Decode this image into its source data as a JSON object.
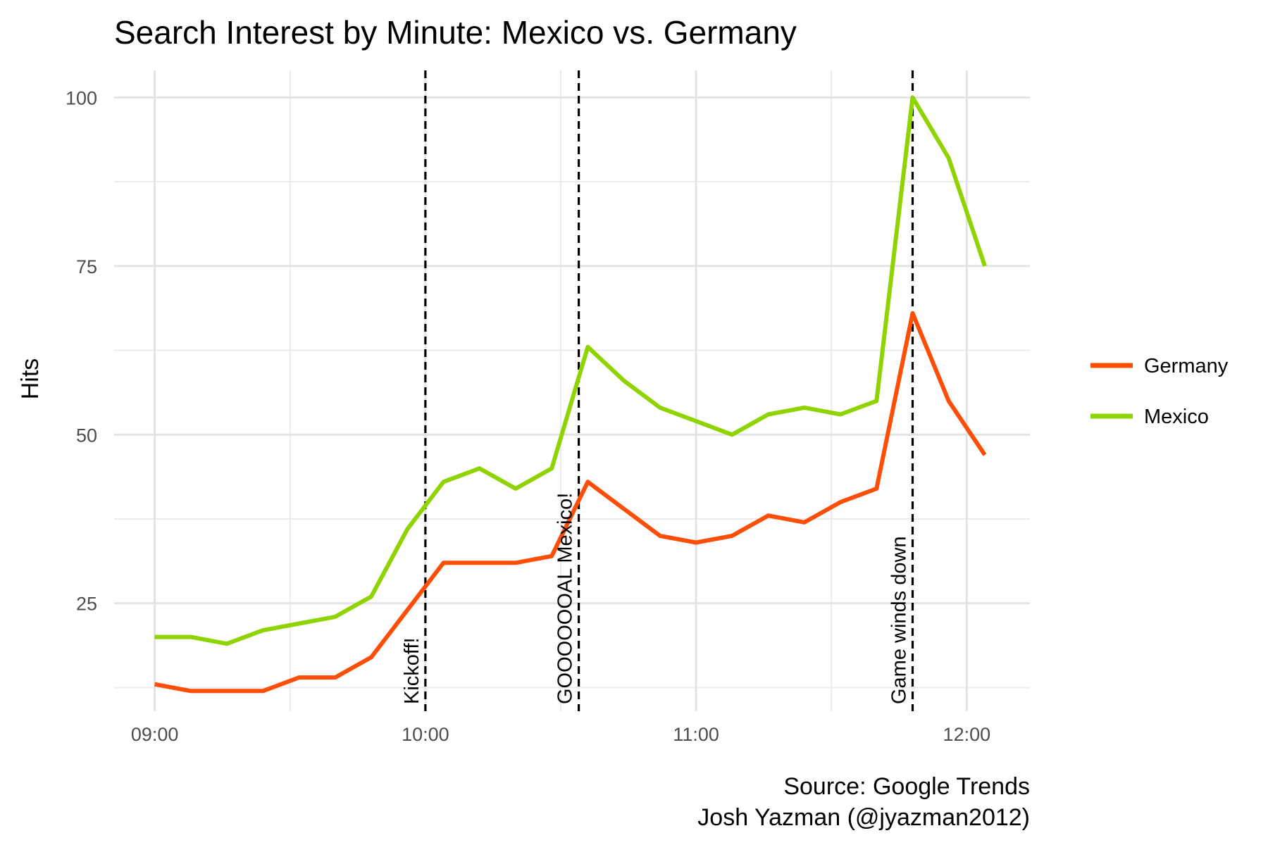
{
  "chart_data": {
    "type": "line",
    "title": "Search Interest by Minute: Mexico vs. Germany",
    "xlabel": "",
    "ylabel": "Hits",
    "x": [
      "09:00",
      "09:08",
      "09:16",
      "09:24",
      "09:32",
      "09:40",
      "09:48",
      "09:56",
      "10:04",
      "10:12",
      "10:20",
      "10:28",
      "10:36",
      "10:44",
      "10:52",
      "11:00",
      "11:08",
      "11:16",
      "11:24",
      "11:32",
      "11:40",
      "11:48",
      "11:56",
      "12:04"
    ],
    "x_ticks": [
      "09:00",
      "10:00",
      "11:00",
      "12:00"
    ],
    "y_ticks": [
      25,
      50,
      75,
      100
    ],
    "ylim": [
      9,
      104
    ],
    "xlim": [
      "08:51",
      "12:14"
    ],
    "grid": true,
    "legend_position": "right",
    "series": [
      {
        "name": "Germany",
        "color": "#FC4E07",
        "values": [
          13,
          12,
          12,
          12,
          14,
          14,
          17,
          24,
          31,
          31,
          31,
          32,
          43,
          39,
          35,
          34,
          35,
          38,
          37,
          40,
          42,
          68,
          55,
          47
        ]
      },
      {
        "name": "Mexico",
        "color": "#8FD400",
        "values": [
          20,
          20,
          19,
          21,
          22,
          23,
          26,
          36,
          43,
          45,
          42,
          45,
          63,
          58,
          54,
          52,
          50,
          53,
          54,
          53,
          55,
          100,
          91,
          75
        ]
      }
    ],
    "annotations": [
      {
        "x": "10:00",
        "label": "Kickoff!"
      },
      {
        "x": "10:34",
        "label": "GOOOOOOAL Mexico!"
      },
      {
        "x": "11:48",
        "label": "Game winds down"
      }
    ],
    "caption": [
      "Source: Google Trends",
      "Josh Yazman (@jyazman2012)"
    ]
  }
}
